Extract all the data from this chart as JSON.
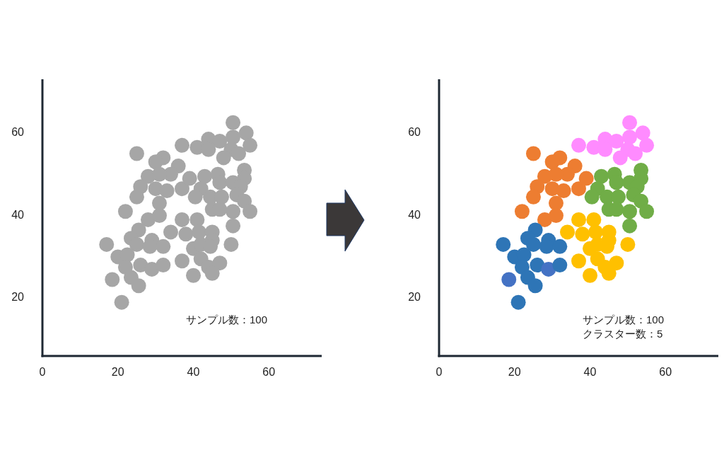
{
  "chart_data": [
    {
      "type": "scatter",
      "xlim": [
        0,
        74
      ],
      "xticks": [
        0,
        20,
        40,
        60
      ],
      "ylim": [
        6,
        73
      ],
      "yticks": [
        20,
        40,
        60
      ],
      "marker": "circle",
      "annotations": [
        "サンプル数：100"
      ],
      "series": [
        {
          "color": "#a6a6a6",
          "x": [
            25,
            32,
            30,
            36,
            34,
            28,
            31,
            26,
            30,
            33,
            37,
            25,
            31,
            22,
            28,
            39,
            31,
            50.5,
            54,
            50.5,
            55,
            37,
            41,
            44,
            47,
            44,
            50,
            52,
            48,
            53.5,
            53.5,
            43,
            46.5,
            47,
            50.5,
            52.5,
            42,
            40.5,
            44.5,
            47.5,
            51.5,
            53.5,
            45,
            47,
            50.5,
            55,
            50.5,
            37,
            41,
            34,
            38,
            41.5,
            45,
            45,
            40,
            42,
            44.5,
            50,
            37,
            42,
            44,
            47,
            45,
            40,
            25.5,
            23.5,
            25,
            29,
            28.5,
            32,
            17,
            20,
            22.5,
            22,
            26,
            29,
            32,
            23.5,
            25.5,
            18.5,
            21
          ],
          "values": [
            55,
            54,
            53,
            52,
            50,
            49.5,
            50,
            47,
            46.5,
            46,
            46.5,
            44.5,
            43,
            41,
            39,
            49,
            40,
            62.5,
            60,
            59,
            57,
            57,
            56.5,
            58.5,
            58,
            56,
            56,
            55,
            54,
            51,
            49,
            49.5,
            50,
            48,
            48,
            47,
            46.5,
            44.5,
            44.5,
            44.5,
            45,
            43.5,
            41.5,
            41.5,
            41,
            41,
            37.5,
            39,
            39,
            36,
            35.5,
            36,
            36,
            34,
            32,
            33,
            32.5,
            33,
            29,
            29.5,
            27.5,
            28.5,
            26,
            25.5,
            36.5,
            34.5,
            33,
            34,
            32.5,
            32.5,
            33,
            30,
            30.5,
            27.5,
            28,
            27,
            28,
            25,
            23,
            24.5,
            19
          ]
        }
      ]
    },
    {
      "type": "scatter",
      "xlim": [
        0,
        74
      ],
      "xticks": [
        0,
        20,
        40,
        60
      ],
      "ylim": [
        6,
        73
      ],
      "yticks": [
        20,
        40,
        60
      ],
      "marker": "circle",
      "annotations": [
        "サンプル数：100",
        "クラスター数：5"
      ],
      "series": [
        {
          "color": "#ed7d31",
          "x": [
            25,
            32,
            30,
            36,
            34,
            28,
            31,
            26,
            30,
            33,
            37,
            25,
            31,
            22,
            28,
            39,
            31
          ],
          "values": [
            55,
            54,
            53,
            52,
            50,
            49.5,
            50,
            47,
            46.5,
            46,
            46.5,
            44.5,
            43,
            41,
            39,
            49,
            40
          ]
        },
        {
          "color": "#ff8bff",
          "x": [
            50.5,
            54,
            50.5,
            55,
            37,
            41,
            44,
            47,
            44,
            50,
            52,
            48
          ],
          "values": [
            62.5,
            60,
            59,
            57,
            57,
            56.5,
            58.5,
            58,
            56,
            56,
            55,
            54
          ]
        },
        {
          "color": "#70ad47",
          "x": [
            53.5,
            53.5,
            43,
            46.5,
            47,
            50.5,
            52.5,
            42,
            40.5,
            44.5,
            47.5,
            51.5,
            53.5,
            45,
            47,
            50.5,
            55,
            50.5
          ],
          "values": [
            51,
            49,
            49.5,
            50,
            48,
            48,
            47,
            46.5,
            44.5,
            44.5,
            44.5,
            45,
            43.5,
            41.5,
            41.5,
            41,
            41,
            37.5
          ]
        },
        {
          "color": "#ffc000",
          "x": [
            37,
            41,
            34,
            38,
            41.5,
            45,
            45,
            40,
            42,
            44.5,
            50,
            37,
            42,
            44,
            47,
            45,
            40
          ],
          "values": [
            39,
            39,
            36,
            35.5,
            36,
            36,
            34,
            32,
            33,
            32.5,
            33,
            29,
            29.5,
            27.5,
            28.5,
            26,
            25.5
          ]
        },
        {
          "color": "#2e75b6",
          "colors": [
            null,
            null,
            null,
            null,
            null,
            null,
            null,
            null,
            null,
            null,
            null,
            "#4472c4",
            null,
            null,
            null,
            "#4472c4",
            null
          ],
          "x": [
            25.5,
            23.5,
            25,
            29,
            28.5,
            32,
            17,
            20,
            22.5,
            22,
            26,
            29,
            32,
            23.5,
            25.5,
            18.5,
            21
          ],
          "values": [
            36.5,
            34.5,
            33,
            34,
            32.5,
            32.5,
            33,
            30,
            30.5,
            27.5,
            28,
            27,
            28,
            25,
            23,
            24.5,
            19
          ]
        }
      ]
    }
  ]
}
